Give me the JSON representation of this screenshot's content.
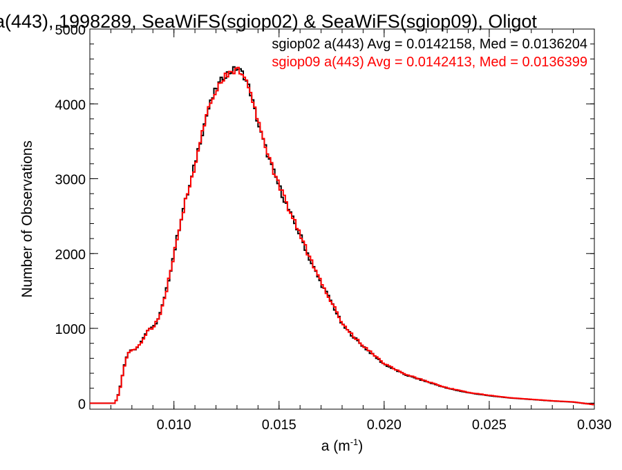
{
  "chart_data": {
    "type": "line",
    "style": "step-histogram",
    "title": "a(443), 1998289, SeaWiFS(sgiop02) & SeaWiFS(sgiop09), Oligot",
    "xlabel": "a (m",
    "xlabel_sup": "-1",
    "xlabel_close": ")",
    "ylabel": "Number of Observations",
    "xlim": [
      0.006,
      0.03
    ],
    "ylim": [
      -80,
      5000
    ],
    "xticks": [
      0.01,
      0.015,
      0.02,
      0.025,
      0.03
    ],
    "xtick_labels": [
      "0.010",
      "0.015",
      "0.020",
      "0.025",
      "0.030"
    ],
    "yticks": [
      0,
      1000,
      2000,
      3000,
      4000,
      5000
    ],
    "ytick_labels": [
      "0",
      "1000",
      "2000",
      "3000",
      "4000",
      "5000"
    ],
    "grid": false,
    "legend_position": "top-right",
    "annotations": [
      "sgiop02 a(443) Avg = 0.0142158, Med = 0.0136204",
      "sgiop09 a(443) Avg = 0.0142413, Med = 0.0136399"
    ],
    "series": [
      {
        "name": "sgiop02",
        "color": "#000000",
        "x": [
          0.006,
          0.0072,
          0.0074,
          0.0076,
          0.0078,
          0.008,
          0.0082,
          0.0085,
          0.0088,
          0.009,
          0.0093,
          0.0096,
          0.01,
          0.0104,
          0.0108,
          0.0112,
          0.0116,
          0.012,
          0.0124,
          0.0127,
          0.013,
          0.0133,
          0.0136,
          0.0139,
          0.0142,
          0.0146,
          0.015,
          0.0155,
          0.016,
          0.0165,
          0.017,
          0.0175,
          0.018,
          0.0185,
          0.019,
          0.0195,
          0.02,
          0.021,
          0.022,
          0.023,
          0.024,
          0.025,
          0.026,
          0.027,
          0.028,
          0.029,
          0.03
        ],
        "values": [
          0,
          0,
          150,
          450,
          680,
          710,
          730,
          850,
          1000,
          1000,
          1150,
          1450,
          2000,
          2550,
          2950,
          3450,
          3900,
          4200,
          4380,
          4430,
          4480,
          4400,
          4200,
          3850,
          3550,
          3200,
          2900,
          2550,
          2250,
          1900,
          1600,
          1350,
          1050,
          900,
          760,
          640,
          520,
          380,
          290,
          200,
          140,
          100,
          70,
          50,
          30,
          15,
          -20
        ]
      },
      {
        "name": "sgiop09",
        "color": "#ff0000",
        "x": [
          0.006,
          0.0072,
          0.0074,
          0.0076,
          0.0078,
          0.008,
          0.0082,
          0.0085,
          0.0088,
          0.009,
          0.0093,
          0.0096,
          0.01,
          0.0104,
          0.0108,
          0.0112,
          0.0116,
          0.012,
          0.0124,
          0.0127,
          0.013,
          0.0133,
          0.0136,
          0.0139,
          0.0142,
          0.0146,
          0.015,
          0.0155,
          0.016,
          0.0165,
          0.017,
          0.0175,
          0.018,
          0.0185,
          0.019,
          0.0195,
          0.02,
          0.021,
          0.022,
          0.023,
          0.024,
          0.025,
          0.026,
          0.027,
          0.028,
          0.029,
          0.03
        ],
        "values": [
          0,
          0,
          140,
          440,
          670,
          700,
          720,
          840,
          990,
          1010,
          1140,
          1440,
          1990,
          2540,
          2940,
          3440,
          3890,
          4190,
          4360,
          4420,
          4470,
          4400,
          4210,
          3860,
          3560,
          3210,
          2910,
          2560,
          2260,
          1910,
          1610,
          1360,
          1060,
          910,
          770,
          650,
          530,
          390,
          295,
          205,
          145,
          105,
          72,
          52,
          32,
          17,
          -20
        ]
      }
    ]
  }
}
